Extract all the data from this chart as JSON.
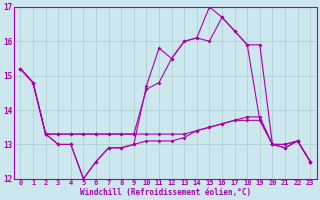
{
  "xlabel": "Windchill (Refroidissement éolien,°C)",
  "bg_color": "#cce8ee",
  "grid_color": "#aacccc",
  "line_color": "#aa00aa",
  "ylim": [
    12,
    17
  ],
  "xlim": [
    -0.5,
    23.5
  ],
  "yticks": [
    12,
    13,
    14,
    15,
    16,
    17
  ],
  "xticks": [
    0,
    1,
    2,
    3,
    4,
    5,
    6,
    7,
    8,
    9,
    10,
    11,
    12,
    13,
    14,
    15,
    16,
    17,
    18,
    19,
    20,
    21,
    22,
    23
  ],
  "series": [
    [
      15.2,
      14.8,
      13.3,
      13.3,
      13.3,
      13.3,
      13.3,
      13.3,
      13.3,
      13.3,
      13.3,
      13.3,
      13.3,
      13.3,
      13.4,
      13.5,
      13.6,
      13.7,
      13.8,
      13.8,
      13.0,
      12.9,
      13.1,
      12.5
    ],
    [
      15.2,
      14.8,
      13.3,
      13.0,
      13.0,
      12.0,
      12.5,
      12.9,
      12.9,
      13.0,
      14.7,
      15.8,
      15.5,
      16.0,
      16.1,
      17.0,
      16.7,
      16.3,
      15.9,
      13.7,
      13.0,
      13.0,
      13.1,
      12.5
    ],
    [
      15.2,
      14.8,
      13.3,
      13.3,
      13.3,
      13.3,
      13.3,
      13.3,
      13.3,
      13.3,
      14.6,
      14.8,
      15.5,
      16.0,
      16.1,
      16.0,
      16.7,
      16.3,
      15.9,
      15.9,
      13.0,
      13.0,
      13.1,
      12.5
    ],
    [
      15.2,
      14.8,
      13.3,
      13.0,
      13.0,
      12.0,
      12.5,
      12.9,
      12.9,
      13.0,
      13.1,
      13.1,
      13.1,
      13.2,
      13.4,
      13.5,
      13.6,
      13.7,
      13.7,
      13.7,
      13.0,
      12.9,
      13.1,
      12.5
    ]
  ]
}
